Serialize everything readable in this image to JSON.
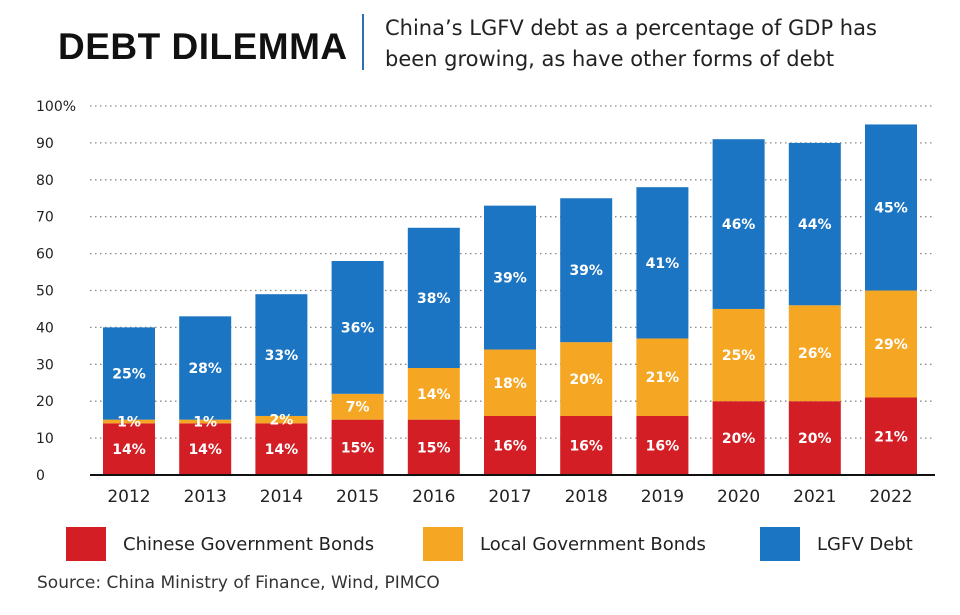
{
  "header": {
    "title": "DEBT DILEMMA",
    "subtitle_line1": "China’s LGFV debt as a percentage of GDP has",
    "subtitle_line2": "been growing, as have other forms of debt"
  },
  "chart_data": {
    "type": "bar",
    "stacked": true,
    "categories": [
      "2012",
      "2013",
      "2014",
      "2015",
      "2016",
      "2017",
      "2018",
      "2019",
      "2020",
      "2021",
      "2022"
    ],
    "series": [
      {
        "name": "Chinese Government Bonds",
        "color": "#d21e24",
        "values": [
          14,
          14,
          14,
          15,
          15,
          16,
          16,
          16,
          20,
          20,
          21
        ],
        "labels": [
          "14%",
          "14%",
          "14%",
          "15%",
          "15%",
          "16%",
          "16%",
          "16%",
          "20%",
          "20%",
          "21%"
        ]
      },
      {
        "name": "Local Government Bonds",
        "color": "#f5a623",
        "values": [
          1,
          1,
          2,
          7,
          14,
          18,
          20,
          21,
          25,
          26,
          29
        ],
        "labels": [
          "1%",
          "1%",
          "2%",
          "7%",
          "14%",
          "18%",
          "20%",
          "21%",
          "25%",
          "26%",
          "29%"
        ]
      },
      {
        "name": "LGFV Debt",
        "color": "#1b75c2",
        "values": [
          25,
          28,
          33,
          36,
          38,
          39,
          39,
          41,
          46,
          44,
          45
        ],
        "labels": [
          "25%",
          "28%",
          "33%",
          "36%",
          "38%",
          "39%",
          "39%",
          "41%",
          "46%",
          "44%",
          "45%"
        ]
      }
    ],
    "ylim": [
      0,
      100
    ],
    "yticks": [
      0,
      10,
      20,
      30,
      40,
      50,
      60,
      70,
      80,
      90,
      100
    ],
    "ytick_labels": [
      "0",
      "10",
      "20",
      "30",
      "40",
      "50",
      "60",
      "70",
      "80",
      "90",
      "100%"
    ],
    "grid": "dotted horizontal",
    "legend_position": "bottom"
  },
  "legend": {
    "items": [
      {
        "label": "Chinese Government Bonds",
        "color": "#d21e24"
      },
      {
        "label": "Local Government Bonds",
        "color": "#f5a623"
      },
      {
        "label": "LGFV Debt",
        "color": "#1b75c2"
      }
    ]
  },
  "footer": {
    "source": "Source: China Ministry of Finance, Wind, PIMCO"
  }
}
